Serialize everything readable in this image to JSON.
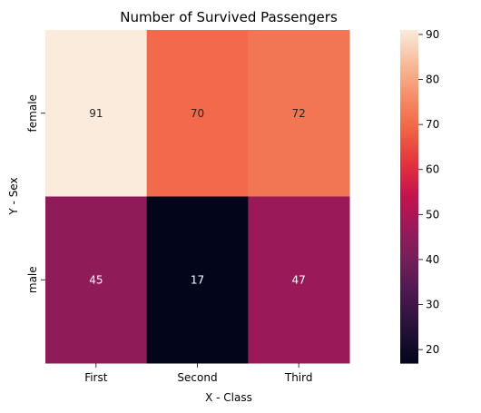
{
  "chart_data": {
    "type": "heatmap",
    "title": "Number of Survived Passengers",
    "xlabel": "X - Class",
    "ylabel": "Y - Sex",
    "x_categories": [
      "First",
      "Second",
      "Third"
    ],
    "y_categories": [
      "female",
      "male"
    ],
    "values": [
      [
        91,
        70,
        72
      ],
      [
        45,
        17,
        47
      ]
    ],
    "colorbar": {
      "range": [
        17,
        91
      ],
      "ticks": [
        20,
        30,
        40,
        50,
        60,
        70,
        80,
        90
      ]
    },
    "colormap": "rocket"
  }
}
